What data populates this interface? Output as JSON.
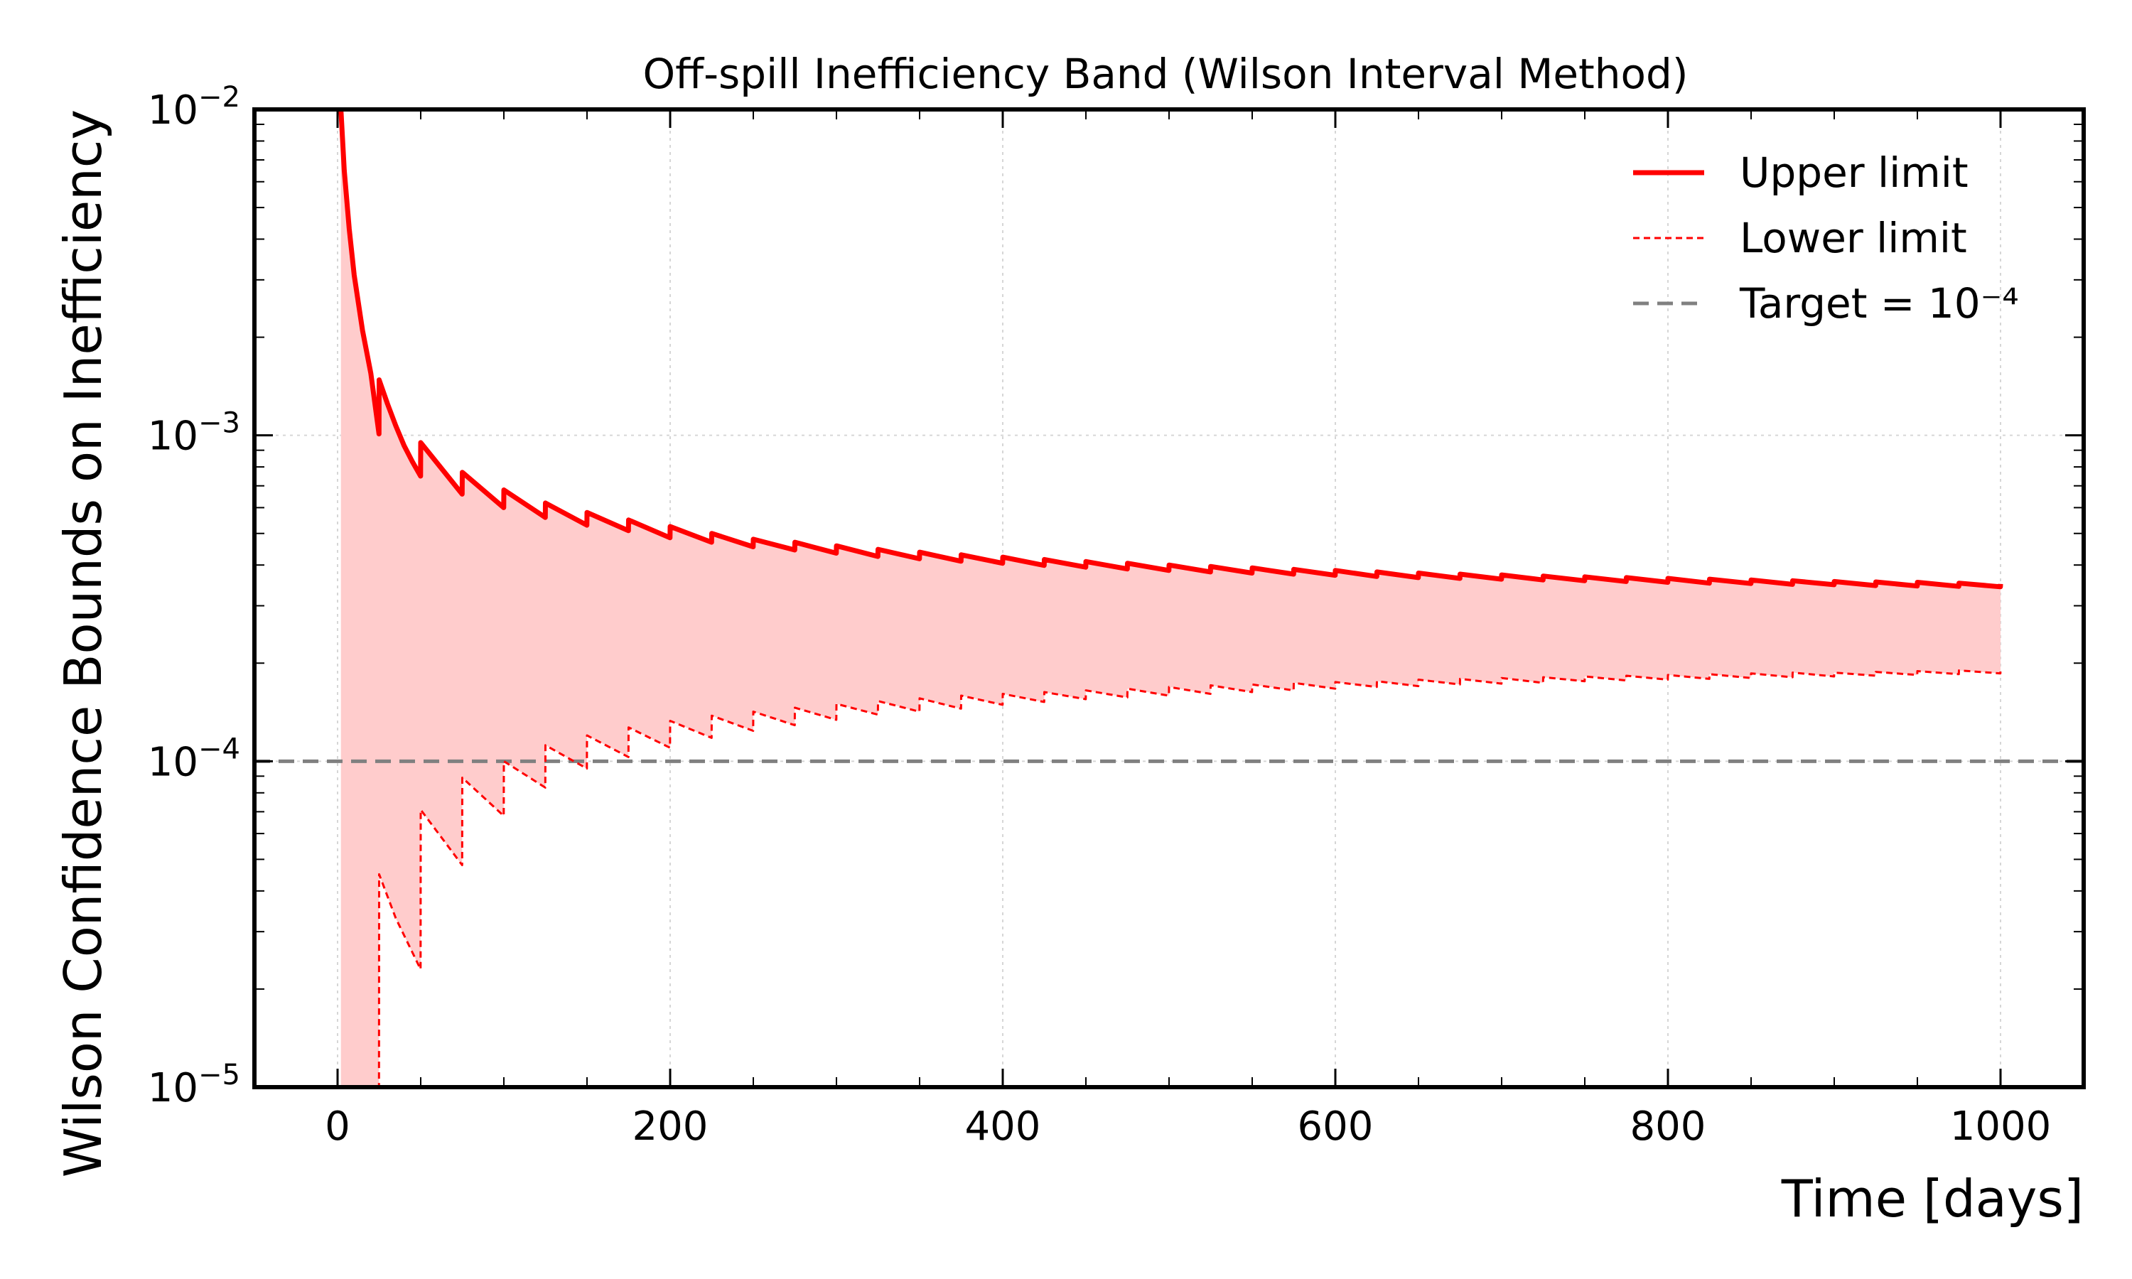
{
  "chart_data": {
    "type": "area",
    "title": "Off-spill Inefficiency Band (Wilson Interval Method)",
    "xlabel": "Time [days]",
    "ylabel": "Wilson Confidence Bounds on Inefficiency",
    "xlim": [
      -50,
      1050
    ],
    "ylim": [
      1e-05,
      0.01
    ],
    "yscale": "log",
    "grid": true,
    "legend_position": "top-right",
    "x_ticks": [
      0,
      200,
      400,
      600,
      800,
      1000
    ],
    "x_tick_labels": [
      "0",
      "200",
      "400",
      "600",
      "800",
      "1000"
    ],
    "y_ticks": [
      1e-05,
      0.0001,
      0.001,
      0.01
    ],
    "y_tick_labels": [
      {
        "base": "10",
        "exp": "−5"
      },
      {
        "base": "10",
        "exp": "−4"
      },
      {
        "base": "10",
        "exp": "−3"
      },
      {
        "base": "10",
        "exp": "−2"
      }
    ],
    "series": [
      {
        "name": "Upper limit",
        "style": "solid",
        "color": "#ff0000",
        "x": [
          2,
          4,
          7,
          10,
          15,
          20,
          24.9,
          25,
          30,
          35,
          40,
          45,
          49.9,
          50,
          74.9,
          75,
          99.9,
          100,
          124.9,
          125,
          149.9,
          150,
          174.9,
          175,
          199.9,
          200,
          224.9,
          225,
          249.9,
          250,
          274.9,
          275,
          299.9,
          300,
          324.9,
          325,
          349.9,
          350,
          374.9,
          375,
          399.9,
          400,
          424.9,
          425,
          449.9,
          450,
          474.9,
          475,
          499.9,
          500,
          524.9,
          525,
          549.9,
          550,
          574.9,
          575,
          599.9,
          600,
          624.9,
          625,
          649.9,
          650,
          674.9,
          675,
          699.9,
          700,
          724.9,
          725,
          749.9,
          750,
          774.9,
          775,
          799.9,
          800,
          824.9,
          825,
          849.9,
          850,
          874.9,
          875,
          899.9,
          900,
          924.9,
          925,
          949.9,
          950,
          974.9,
          975,
          999.9,
          1000
        ],
        "y": [
          0.01,
          0.0065,
          0.0043,
          0.0031,
          0.0021,
          0.00155,
          0.00101,
          0.00148,
          0.00125,
          0.00107,
          0.00093,
          0.00083,
          0.00075,
          0.00095,
          0.00066,
          0.00077,
          0.0006,
          0.00068,
          0.00056,
          0.00062,
          0.00053,
          0.00058,
          0.00051,
          0.00055,
          0.000485,
          0.000525,
          0.00047,
          0.0005,
          0.000455,
          0.00048,
          0.000445,
          0.00047,
          0.000435,
          0.000458,
          0.000425,
          0.000447,
          0.000418,
          0.000438,
          0.000411,
          0.00043,
          0.000405,
          0.000423,
          0.000399,
          0.000416,
          0.000394,
          0.00041,
          0.000389,
          0.000405,
          0.000385,
          0.0004,
          0.000381,
          0.000396,
          0.000378,
          0.000392,
          0.000375,
          0.000388,
          0.000372,
          0.000385,
          0.000369,
          0.000381,
          0.000366,
          0.000378,
          0.000364,
          0.000375,
          0.000362,
          0.000373,
          0.00036,
          0.00037,
          0.000358,
          0.000368,
          0.000356,
          0.000366,
          0.000354,
          0.000364,
          0.000352,
          0.000362,
          0.000351,
          0.00036,
          0.000349,
          0.000358,
          0.000348,
          0.000356,
          0.000346,
          0.000355,
          0.000345,
          0.000354,
          0.000344,
          0.000352,
          0.000343,
          0.00035
        ]
      },
      {
        "name": "Lower limit",
        "style": "dashed",
        "color": "#ff0000",
        "x": [
          24.9,
          25,
          35,
          49.9,
          50,
          74.9,
          75,
          99.9,
          100,
          124.9,
          125,
          149.9,
          150,
          174.9,
          175,
          199.9,
          200,
          224.9,
          225,
          249.9,
          250,
          274.9,
          275,
          299.9,
          300,
          324.9,
          325,
          349.9,
          350,
          374.9,
          375,
          399.9,
          400,
          424.9,
          425,
          449.9,
          450,
          474.9,
          475,
          499.9,
          500,
          524.9,
          525,
          549.9,
          550,
          574.9,
          575,
          599.9,
          600,
          624.9,
          625,
          649.9,
          650,
          674.9,
          675,
          699.9,
          700,
          724.9,
          725,
          749.9,
          750,
          774.9,
          775,
          799.9,
          800,
          824.9,
          825,
          849.9,
          850,
          874.9,
          875,
          899.9,
          900,
          924.9,
          925,
          949.9,
          950,
          974.9,
          975,
          999.9,
          1000
        ],
        "y": [
          1e-05,
          4.5e-05,
          3.3e-05,
          2.3e-05,
          7.1e-05,
          4.8e-05,
          8.9e-05,
          6.8e-05,
          0.0001,
          8.3e-05,
          0.000112,
          9.5e-05,
          0.00012,
          0.000103,
          0.000127,
          0.00011,
          0.000133,
          0.000118,
          0.000138,
          0.000124,
          0.000142,
          0.000129,
          0.000146,
          0.000134,
          0.00015,
          0.000139,
          0.000153,
          0.000142,
          0.000156,
          0.000145,
          0.000159,
          0.000149,
          0.000161,
          0.000152,
          0.000163,
          0.000155,
          0.000165,
          0.000157,
          0.000167,
          0.000159,
          0.000169,
          0.000161,
          0.000171,
          0.000163,
          0.000172,
          0.000165,
          0.000174,
          0.000167,
          0.000175,
          0.000169,
          0.000176,
          0.00017,
          0.000178,
          0.000172,
          0.000179,
          0.000173,
          0.00018,
          0.000174,
          0.000181,
          0.000176,
          0.000182,
          0.000177,
          0.000183,
          0.000178,
          0.000184,
          0.000179,
          0.000185,
          0.00018,
          0.000186,
          0.000181,
          0.000187,
          0.000182,
          0.000187,
          0.000183,
          0.000188,
          0.000184,
          0.000189,
          0.000185,
          0.00019,
          0.000186,
          0.00019
        ]
      },
      {
        "name": "Target = 10⁻⁴",
        "style": "dashed",
        "color": "#808080",
        "y_constant": 0.0001
      }
    ]
  }
}
